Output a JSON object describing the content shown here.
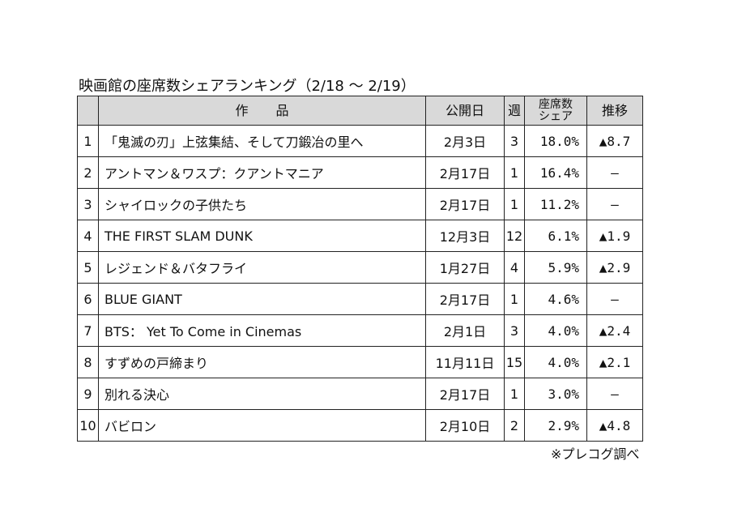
{
  "title": "映画館の座席数シェアランキング（2/18 〜 2/19）",
  "headers": {
    "work": "作品",
    "release": "公開日",
    "week": "週",
    "share_line1": "座席数",
    "share_line2": "シェア",
    "trend": "推移"
  },
  "rows": [
    {
      "no": "1",
      "title": "「鬼滅の刃」上弦集結、そして刀鍛冶の里へ",
      "release": "2月3日",
      "week": "3",
      "share": "18.0%",
      "trend": "▲8.7"
    },
    {
      "no": "2",
      "title": "アントマン＆ワスプ：クアントマニア",
      "release": "2月17日",
      "week": "1",
      "share": "16.4%",
      "trend": "—"
    },
    {
      "no": "3",
      "title": "シャイロックの子供たち",
      "release": "2月17日",
      "week": "1",
      "share": "11.2%",
      "trend": "—"
    },
    {
      "no": "4",
      "title": "THE FIRST SLAM DUNK",
      "release": "12月3日",
      "week": "12",
      "share": "6.1%",
      "trend": "▲1.9"
    },
    {
      "no": "5",
      "title": "レジェンド＆バタフライ",
      "release": "1月27日",
      "week": "4",
      "share": "5.9%",
      "trend": "▲2.9"
    },
    {
      "no": "6",
      "title": "BLUE GIANT",
      "release": "2月17日",
      "week": "1",
      "share": "4.6%",
      "trend": "—"
    },
    {
      "no": "7",
      "title": "BTS： Yet To Come in Cinemas",
      "release": "2月1日",
      "week": "3",
      "share": "4.0%",
      "trend": "▲2.4"
    },
    {
      "no": "8",
      "title": "すずめの戸締まり",
      "release": "11月11日",
      "week": "15",
      "share": "4.0%",
      "trend": "▲2.1"
    },
    {
      "no": "9",
      "title": "別れる決心",
      "release": "2月17日",
      "week": "1",
      "share": "3.0%",
      "trend": "—"
    },
    {
      "no": "10",
      "title": "バビロン",
      "release": "2月10日",
      "week": "2",
      "share": "2.9%",
      "trend": "▲4.8"
    }
  ],
  "footnote": "※プレコグ調べ"
}
